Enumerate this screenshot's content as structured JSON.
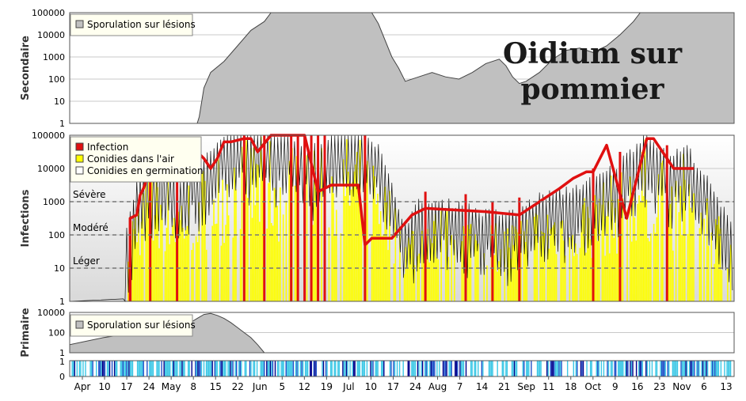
{
  "chart_data": {
    "title": "Oidium sur pommier",
    "type": "area",
    "x_ticks": [
      "Apr",
      "10",
      "17",
      "24",
      "May",
      "8",
      "15",
      "22",
      "Jun",
      "5",
      "12",
      "19",
      "Jul",
      "10",
      "17",
      "24",
      "Aug",
      "7",
      "14",
      "21",
      "Sep",
      "11",
      "18",
      "Oct",
      "9",
      "16",
      "23",
      "Nov",
      "6",
      "13"
    ],
    "panels": [
      {
        "name": "secondary",
        "ylabel": "Secondaire",
        "yscale": "log",
        "ylim": [
          1,
          100000
        ],
        "yticks": [
          "100000",
          "10000",
          "1000",
          "100",
          "10",
          "1"
        ],
        "legend": [
          "Sporulation sur lésions"
        ],
        "series": [
          {
            "name": "Sporulation sur lésions",
            "color": "#c0c0c0",
            "points": [
              [
                0,
                0
              ],
              [
                19,
                0
              ],
              [
                19.3,
                0.3
              ],
              [
                20,
                1.6
              ],
              [
                21,
                2.3
              ],
              [
                23,
                2.8
              ],
              [
                25,
                3.5
              ],
              [
                27,
                4.2
              ],
              [
                29,
                4.6
              ],
              [
                30,
                5
              ],
              [
                40,
                5
              ],
              [
                45,
                5
              ],
              [
                46,
                4.5
              ],
              [
                48,
                3
              ],
              [
                49,
                2.5
              ],
              [
                50,
                1.9
              ],
              [
                52,
                2.1
              ],
              [
                54,
                2.3
              ],
              [
                56,
                2.1
              ],
              [
                58,
                2
              ],
              [
                60,
                2.3
              ],
              [
                62,
                2.7
              ],
              [
                64,
                2.9
              ],
              [
                65,
                2.6
              ],
              [
                66,
                2.1
              ],
              [
                67,
                1.8
              ],
              [
                68,
                1.9
              ],
              [
                70,
                2.3
              ],
              [
                72,
                2.9
              ],
              [
                74,
                3.3
              ],
              [
                76,
                3.4
              ],
              [
                78,
                3.2
              ],
              [
                80,
                3.5
              ],
              [
                82,
                4
              ],
              [
                84,
                4.6
              ],
              [
                85,
                5
              ],
              [
                99,
                5
              ]
            ]
          }
        ]
      },
      {
        "name": "infections",
        "ylabel": "Infections",
        "yscale": "log",
        "ylim": [
          1,
          100000
        ],
        "yticks": [
          "100000",
          "10000",
          "1000",
          "100",
          "10",
          "1"
        ],
        "levels": [
          {
            "label": "Sévère",
            "value": 1000
          },
          {
            "label": "Modéré",
            "value": 100
          },
          {
            "label": "Léger",
            "value": 10
          }
        ],
        "legend": [
          "Infection",
          "Conidies dans l'air",
          "Conidies en germination"
        ],
        "series": [
          {
            "name": "Conidies dans l'air",
            "color": "#ffff00"
          },
          {
            "name": "Conidies en germination",
            "color": "#ffffff"
          },
          {
            "name": "Infection",
            "color": "#e01010",
            "points": [
              [
                9,
                0
              ],
              [
                9,
                2.5
              ],
              [
                10,
                2.6
              ],
              [
                10.5,
                3.2
              ],
              [
                11,
                3.4
              ],
              [
                12,
                4
              ],
              [
                13,
                4.2
              ],
              [
                14,
                4.4
              ],
              [
                15,
                4.5
              ],
              [
                19,
                4.5
              ],
              [
                20,
                4.3
              ],
              [
                21,
                4
              ],
              [
                22,
                4.3
              ],
              [
                23,
                4.8
              ],
              [
                24,
                4.8
              ],
              [
                26,
                4.9
              ],
              [
                27,
                4.9
              ],
              [
                28,
                4.5
              ],
              [
                30,
                5
              ],
              [
                32,
                5
              ],
              [
                33,
                5
              ],
              [
                35,
                5
              ],
              [
                37,
                3.3
              ],
              [
                38,
                3.4
              ],
              [
                39,
                3.5
              ],
              [
                41,
                3.5
              ],
              [
                42,
                3.5
              ],
              [
                43,
                3.5
              ],
              [
                44,
                1.7
              ],
              [
                45,
                1.9
              ],
              [
                46,
                1.9
              ],
              [
                48,
                1.9
              ],
              [
                51,
                2.6
              ],
              [
                52,
                2.7
              ],
              [
                53,
                2.8
              ],
              [
                62,
                2.7
              ],
              [
                67,
                2.6
              ],
              [
                73,
                3.4
              ],
              [
                75,
                3.7
              ],
              [
                77,
                3.9
              ],
              [
                78,
                3.9
              ],
              [
                80,
                4.7
              ],
              [
                83,
                2.5
              ],
              [
                86,
                4.9
              ],
              [
                87,
                4.9
              ],
              [
                90,
                4
              ],
              [
                93,
                4
              ]
            ]
          }
        ]
      },
      {
        "name": "primary",
        "ylabel": "Primaire",
        "yscale": "log",
        "ylim": [
          1,
          10000
        ],
        "yticks": [
          "10000",
          "100",
          "1"
        ],
        "legend": [
          "Sporulation sur lésions"
        ],
        "series": [
          {
            "name": "Sporulation sur lésions",
            "color": "#c0c0c0",
            "points": [
              [
                0,
                0
              ],
              [
                0,
                0.8
              ],
              [
                5,
                1.5
              ],
              [
                10,
                2
              ],
              [
                15,
                2.3
              ],
              [
                18,
                3
              ],
              [
                19,
                3.4
              ],
              [
                20,
                3.8
              ],
              [
                21,
                3.9
              ],
              [
                22,
                3.7
              ],
              [
                23,
                3.4
              ],
              [
                24,
                3
              ],
              [
                25,
                2.5
              ],
              [
                26,
                2
              ],
              [
                27,
                1.5
              ],
              [
                28,
                0.8
              ],
              [
                29,
                0
              ],
              [
                99,
                0
              ]
            ]
          }
        ]
      },
      {
        "name": "wetness",
        "yticks": [
          "1",
          "0"
        ]
      }
    ]
  }
}
